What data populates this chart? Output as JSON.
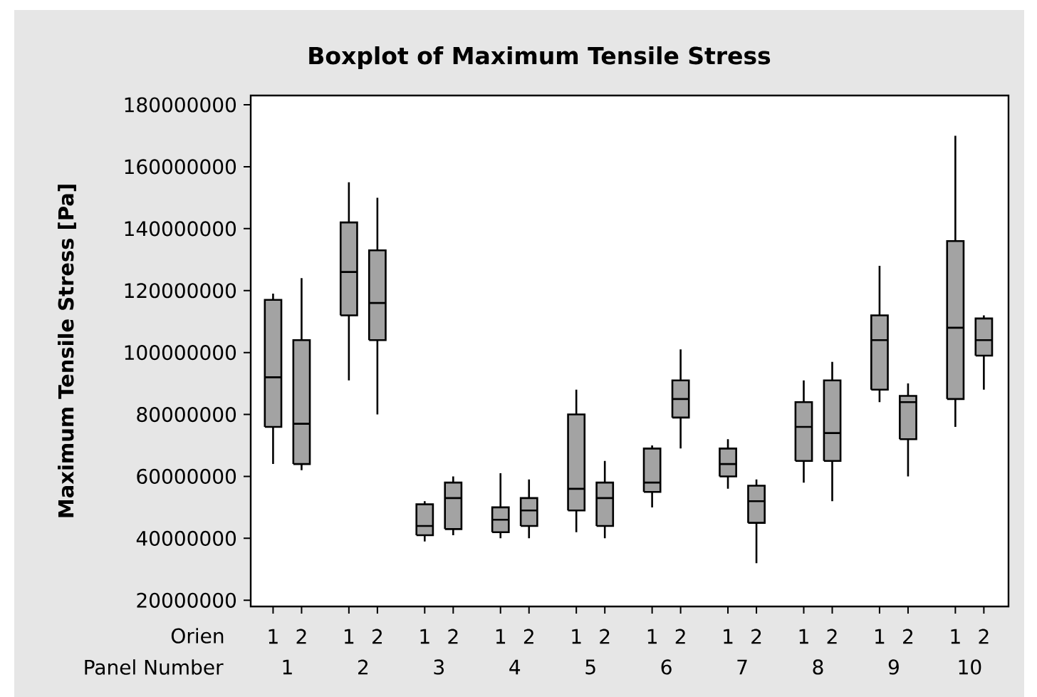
{
  "chart_data": {
    "type": "box",
    "title": "Boxplot of Maximum Tensile Stress",
    "ylabel": "Maximum Tensile Stress [Pa]",
    "xlabel": "Orien",
    "categories": [
      "1",
      "2",
      "1",
      "2",
      "1",
      "2",
      "1",
      "2",
      "1",
      "2",
      "1",
      "2",
      "1",
      "2",
      "1",
      "2",
      "1",
      "2",
      "1",
      "2"
    ],
    "annotations": [
      "Panel Number",
      "1",
      "2",
      "3",
      "4",
      "5",
      "6",
      "7",
      "8",
      "9",
      "10"
    ],
    "color": "#a3a3a3",
    "boxes": [
      {
        "low": 64000000,
        "q1": 76000000,
        "median": 92000000,
        "q3": 117000000,
        "high": 119000000
      },
      {
        "low": 62000000,
        "q1": 64000000,
        "median": 77000000,
        "q3": 104000000,
        "high": 124000000
      },
      {
        "low": 91000000,
        "q1": 112000000,
        "median": 126000000,
        "q3": 142000000,
        "high": 155000000
      },
      {
        "low": 80000000,
        "q1": 104000000,
        "median": 116000000,
        "q3": 133000000,
        "high": 150000000
      },
      {
        "low": 39000000,
        "q1": 41000000,
        "median": 44000000,
        "q3": 51000000,
        "high": 52000000
      },
      {
        "low": 41000000,
        "q1": 43000000,
        "median": 53000000,
        "q3": 58000000,
        "high": 60000000
      },
      {
        "low": 40000000,
        "q1": 42000000,
        "median": 46000000,
        "q3": 50000000,
        "high": 61000000
      },
      {
        "low": 40000000,
        "q1": 44000000,
        "median": 49000000,
        "q3": 53000000,
        "high": 59000000
      },
      {
        "low": 42000000,
        "q1": 49000000,
        "median": 56000000,
        "q3": 80000000,
        "high": 88000000
      },
      {
        "low": 40000000,
        "q1": 44000000,
        "median": 53000000,
        "q3": 58000000,
        "high": 65000000
      },
      {
        "low": 50000000,
        "q1": 55000000,
        "median": 58000000,
        "q3": 69000000,
        "high": 70000000
      },
      {
        "low": 69000000,
        "q1": 79000000,
        "median": 85000000,
        "q3": 91000000,
        "high": 101000000
      },
      {
        "low": 56000000,
        "q1": 60000000,
        "median": 64000000,
        "q3": 69000000,
        "high": 72000000
      },
      {
        "low": 32000000,
        "q1": 45000000,
        "median": 52000000,
        "q3": 57000000,
        "high": 59000000
      },
      {
        "low": 58000000,
        "q1": 65000000,
        "median": 76000000,
        "q3": 84000000,
        "high": 91000000
      },
      {
        "low": 52000000,
        "q1": 65000000,
        "median": 74000000,
        "q3": 91000000,
        "high": 97000000
      },
      {
        "low": 84000000,
        "q1": 88000000,
        "median": 104000000,
        "q3": 112000000,
        "high": 128000000
      },
      {
        "low": 60000000,
        "q1": 72000000,
        "median": 84000000,
        "q3": 86000000,
        "high": 90000000
      },
      {
        "low": 76000000,
        "q1": 85000000,
        "median": 108000000,
        "q3": 136000000,
        "high": 170000000
      },
      {
        "low": 88000000,
        "q1": 99000000,
        "median": 104000000,
        "q3": 111000000,
        "high": 112000000
      }
    ],
    "ylim": [
      18000000,
      183000000
    ],
    "yticks": [
      20000000,
      40000000,
      60000000,
      80000000,
      100000000,
      120000000,
      140000000,
      160000000,
      180000000
    ]
  }
}
